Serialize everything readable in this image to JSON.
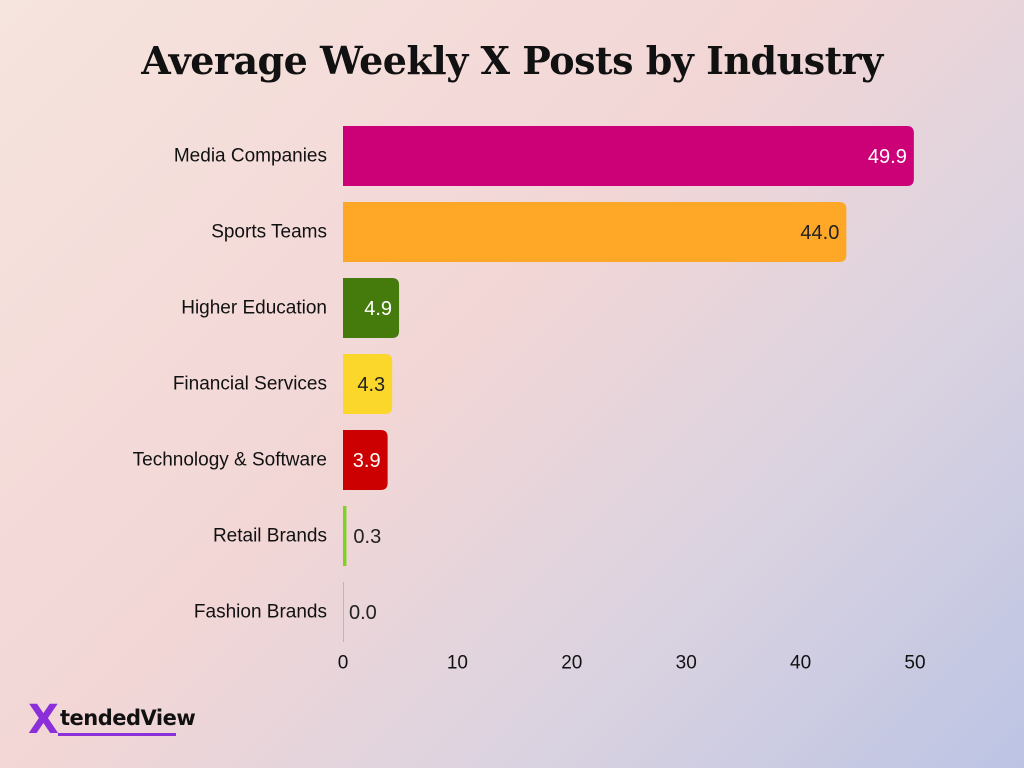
{
  "chart_data": {
    "type": "bar",
    "orientation": "horizontal",
    "title": "Average Weekly X Posts by Industry",
    "xlabel": "",
    "ylabel": "",
    "xlim": [
      0,
      50
    ],
    "ticks": [
      0,
      10,
      20,
      30,
      40,
      50
    ],
    "grid": false,
    "categories": [
      "Media Companies",
      "Sports Teams",
      "Higher Education",
      "Financial Services",
      "Technology & Software",
      "Retail Brands",
      "Fashion Brands"
    ],
    "values": [
      49.9,
      44.0,
      4.9,
      4.3,
      3.9,
      0.3,
      0.0
    ],
    "value_labels": [
      "49.9",
      "44.0",
      "4.9",
      "4.3",
      "3.9",
      "0.3",
      "0.0"
    ],
    "colors": [
      "#cc0077",
      "#ffa726",
      "#457b0c",
      "#fcd72b",
      "#cc0000",
      "#7ed321",
      "#e0a3b8"
    ],
    "label_colors": [
      "#ffffff",
      "#222222",
      "#ffffff",
      "#222222",
      "#ffffff",
      "#222222",
      "#222222"
    ]
  },
  "logo": {
    "mark": "X",
    "text": "tendedView",
    "color": "#8b2fd9"
  }
}
